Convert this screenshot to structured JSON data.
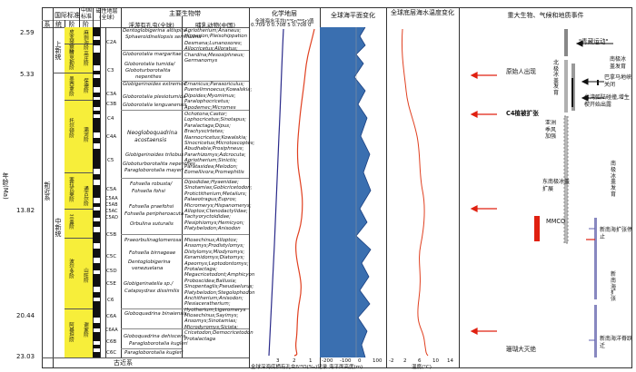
{
  "headers": {
    "intl_std": "国际标准",
    "cn_std": "中国标准",
    "sys": "系",
    "ser": "统",
    "stage": "阶",
    "cn_stage": "阶",
    "magneto": "磁性地层(全球)",
    "main_bio": "主要生物带",
    "foram": "浮游有孔虫(全球)",
    "mammal": "哺乳动物(中国)",
    "chem": "化学地层",
    "chem_sub": "全球海水平均(⁸⁷Sr/⁸⁶Sr)值",
    "sealevel": "全球海平面变化",
    "deeptemp": "全球底层海水温度变化",
    "events": "重大生物、气候和地质事件",
    "age_axis": "年龄(Ma)"
  },
  "ages": [
    "2.59",
    "5.33",
    "13.82",
    "20.44",
    "23.03"
  ],
  "system_label": "新近系",
  "bottom_system": "古近系",
  "series": [
    "上新统",
    "中新统"
  ],
  "stages": [
    "皮亚琴察阶",
    "赞克勒阶",
    "墨西拿阶",
    "托尔顿阶",
    "塞拉瓦莱阶",
    "兰盖阶",
    "波尔多阶",
    "阿基坦阶"
  ],
  "cn_stages": [
    "麻则沟阶",
    "高庄阶",
    "保德阶",
    "灞河阶",
    "通古尔阶",
    "山旺阶",
    "谢家阶"
  ],
  "chrons": [
    "C2A",
    "C3",
    "C3A",
    "C3B",
    "C4",
    "C4A",
    "C5",
    "C5A",
    "C5AA",
    "C5AB",
    "C5AC",
    "C5AD",
    "C5B",
    "C5C",
    "C5D",
    "C5E",
    "C6",
    "C6A",
    "C6AA",
    "C6B",
    "C6C"
  ],
  "foram_zones": [
    "Dentoglobigerina altispira",
    "Sphaeroidinellopsis seminulina",
    "Globorotalia margaritae",
    "Globorotalia tumida/",
    "Globoturborotalita",
    "nepenthes",
    "Globigerinoides extremus",
    "Globorotalia plesiotumida",
    "Globorotalia lenguanensis",
    "Neogloboquadrina",
    "acostaensis",
    "Globoturborotalita nepenthes",
    "Paragloborotalia mayeri",
    "Fohsella robusta/",
    "Fohsella fohsi",
    "Fohsella praefohsi",
    "Fohsella peripheroacuta",
    "Orbulina suturalis",
    "Praeorbulinaglomerosa",
    "Fohsella birnageae",
    "Dentoglobigerina",
    "venezuelana",
    "Globigerinatella sp./",
    "Catapsydrax dissimilis",
    "Paragloborotalia kugleri"
  ],
  "foram_zones2": [
    "Globigerinoides trilobus",
    "Globoquadrina binaiensis",
    "Globoquadrina dehiscens",
    "Paragloborotalia kugleri"
  ],
  "mammal_zones": [
    "Agriotherium;Ananeus;",
    "Hipparion;Pleisohippation",
    "Desmana;Lunanosores;",
    "Allocricetus;Alloratus;",
    "Chardina;Mesosiphneus;",
    "Germanomys",
    "Ernanicus;Parasoriculus;",
    "Puenelimnoecus;Kowalskia;",
    "Dipoides;Myomimus;",
    "Paralophocricetus;",
    "Apodemec;Micromes",
    "Ochotona;Castor;",
    "Lophocricetus;Sinotapus;",
    "Paralactaga;Dipus;",
    "Brachyscirtetes;",
    "Nannocricetus;Kowalskia;",
    "Sinocricetus;Microtoscoptes;",
    "Abudhabia;Prosiphneus;",
    "Pararhizomys;Adcrocuta;",
    "Agriotherium;Sinictis;",
    "Parataxidea;Melodon;",
    "Eomellivora;Promephitis",
    "Dipodidae;Hyaenidae;",
    "Sinotamias;Gobicricetodon;",
    "Protictitherium;Metailurs;",
    "Palaeotragus;Eupros;",
    "Micromerys;Hispanomerys;",
    "Alloptox;Ctenodactylidae;",
    "Tachyoryctoididae;",
    "Plesiphiomys;Hemicyon;",
    "Platybelodon;Anisodon",
    "Miosechinus;Alloptox;",
    "Ansomys;Prodistylomys;",
    "Distylomys;Miodyromys;",
    "Keramidomys;Diatomys;",
    "Apeomys;Leptodontomys;",
    "Protalactaga;",
    "Megacricetodont;Amphicyon",
    "Proboscidea;Ballusia;",
    "Sinopentaglis;Pseudaelurus;",
    "Platybelodon;Stegolophodon",
    "Anchitherium;Anisodon;",
    "Plesiaceratherium;",
    "Hyotherium;Ligeromeryx",
    "Miosechinus;Sayimys;",
    "Ansomys;Sinotamias;",
    "Microdyromys;Sicista;",
    "Cricetodon;Democricetodon",
    "Protalactaga"
  ],
  "chem_scale": [
    "0.709 0",
    "0.708 5",
    "0.708 0"
  ],
  "sealevel_scale": [
    "-200",
    "-100",
    "0",
    "100"
  ],
  "temp_scale": [
    "-2",
    "2",
    "6",
    "10",
    "14"
  ],
  "bottom_labels": {
    "chem": "全球深海底栖有孔虫δ¹⁸O(‰)记录",
    "chem_ticks": [
      "3",
      "2",
      "1"
    ],
    "sealevel": "海平面高度(m)",
    "temp": "温度(°C)"
  },
  "events": [
    "\"青藏运动\"",
    "原始人出现",
    "南极冰盖发育",
    "北极冰盖发育",
    "巴拿马地峡关闭",
    "C4植被扩张",
    "台湾弧陆碰撞,增生楔开始出露",
    "亚洲季风加强",
    "东南极冰盖扩展",
    "南极冰盖发育",
    "MMCO",
    "新南海扩张停止",
    "新南海扩张",
    "新南海洋脊跃迁",
    "珊瑚大灭绝"
  ],
  "colors": {
    "stage_yellow": "#f7ee3a",
    "sr_curve": "#2a2a8a",
    "o18_curve": "#e04020",
    "sealevel_fill": "#3a6fb0",
    "temp_curve": "#e04020",
    "red_arrow": "#e02010",
    "mmco_red": "#e02010"
  }
}
